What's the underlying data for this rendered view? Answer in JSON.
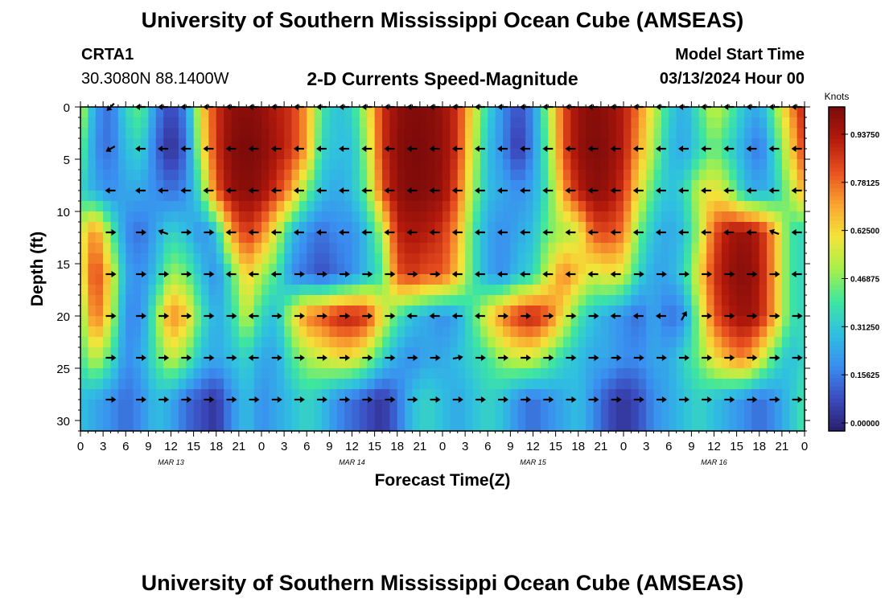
{
  "header": {
    "title": "University of Southern Mississippi Ocean Cube (AMSEAS)",
    "station_id": "CRTA1",
    "station_coords": "30.3080N  88.1400W",
    "subtitle": "2-D Currents Speed-Magnitude",
    "model_start_label": "Model Start Time",
    "model_start_value": "03/13/2024 Hour 00"
  },
  "footer": {
    "title": "University of Southern Mississippi Ocean Cube (AMSEAS)"
  },
  "chart_data": {
    "type": "heatmap",
    "title": "2-D Currents Speed-Magnitude",
    "xlabel": "Forecast Time(Z)",
    "ylabel": "Depth (ft)",
    "x_unit": "hours since 03/13/2024 00Z",
    "xlim": [
      0,
      96
    ],
    "ylim": [
      0,
      31
    ],
    "x_tick_hours": [
      0,
      3,
      6,
      9,
      12,
      15,
      18,
      21,
      24,
      27,
      30,
      33,
      36,
      39,
      42,
      45,
      48,
      51,
      54,
      57,
      60,
      63,
      66,
      69,
      72,
      75,
      78,
      81,
      84,
      87,
      90,
      93,
      96
    ],
    "x_tick_labels": [
      "0",
      "3",
      "6",
      "9",
      "12",
      "15",
      "18",
      "21",
      "0",
      "3",
      "6",
      "9",
      "12",
      "15",
      "18",
      "21",
      "0",
      "3",
      "6",
      "9",
      "12",
      "15",
      "18",
      "21",
      "0",
      "3",
      "6",
      "9",
      "12",
      "15",
      "18",
      "21",
      "0"
    ],
    "date_labels": [
      {
        "hour": 12,
        "text": "MAR 13"
      },
      {
        "hour": 36,
        "text": "MAR 14"
      },
      {
        "hour": 60,
        "text": "MAR 15"
      },
      {
        "hour": 84,
        "text": "MAR 16"
      }
    ],
    "y_ticks": [
      0,
      5,
      10,
      15,
      20,
      25,
      30
    ],
    "y_tick_labels": [
      "0",
      "5",
      "10",
      "15",
      "20",
      "25",
      "30"
    ],
    "colorbar": {
      "unit": "Knots",
      "range": [
        0,
        1.0
      ],
      "tick_values": [
        0.0,
        0.15625,
        0.3125,
        0.46875,
        0.625,
        0.78125,
        0.9375
      ],
      "tick_labels": [
        "0.00000",
        "0.15625",
        "0.31250",
        "0.46875",
        "0.62500",
        "0.78125",
        "0.93750"
      ],
      "colors": [
        "#2b1d6b",
        "#3b4cc0",
        "#3a8ef0",
        "#2fc0e0",
        "#3ee6a0",
        "#a8f04a",
        "#f4e33a",
        "#f9a330",
        "#e8501f",
        "#b41a0c",
        "#7a0a0a"
      ]
    },
    "depth_levels_ft": [
      0,
      4,
      8,
      12,
      16,
      20,
      24,
      28
    ],
    "speed_grid_hours": [
      0,
      2,
      4,
      6,
      8,
      10,
      12,
      14,
      16,
      18,
      20,
      22,
      24,
      26,
      28,
      30,
      32,
      34,
      36,
      38,
      40,
      42,
      44,
      46,
      48,
      50,
      52,
      54,
      56,
      58,
      60,
      62,
      64,
      66,
      68,
      70,
      72,
      74,
      76,
      78,
      80,
      82,
      84,
      86,
      88,
      90,
      92,
      94,
      96
    ],
    "speed": [
      [
        0.55,
        0.22,
        0.15,
        0.35,
        0.45,
        0.2,
        0.08,
        0.2,
        0.6,
        0.85,
        0.96,
        0.98,
        0.96,
        0.9,
        0.85,
        0.7,
        0.4,
        0.3,
        0.35,
        0.55,
        0.85,
        0.96,
        0.99,
        0.98,
        0.95,
        0.85,
        0.6,
        0.35,
        0.2,
        0.1,
        0.2,
        0.5,
        0.8,
        0.95,
        0.98,
        0.96,
        0.9,
        0.75,
        0.55,
        0.35,
        0.25,
        0.4,
        0.55,
        0.45,
        0.3,
        0.25,
        0.45,
        0.7,
        0.9
      ],
      [
        0.45,
        0.2,
        0.15,
        0.3,
        0.35,
        0.15,
        0.03,
        0.15,
        0.55,
        0.85,
        0.98,
        1.0,
        0.98,
        0.92,
        0.85,
        0.7,
        0.35,
        0.3,
        0.3,
        0.5,
        0.85,
        0.97,
        1.0,
        0.99,
        0.96,
        0.85,
        0.55,
        0.3,
        0.2,
        0.05,
        0.2,
        0.45,
        0.8,
        0.95,
        0.99,
        0.97,
        0.9,
        0.7,
        0.5,
        0.3,
        0.25,
        0.35,
        0.45,
        0.35,
        0.25,
        0.15,
        0.35,
        0.6,
        0.85
      ],
      [
        0.35,
        0.25,
        0.2,
        0.25,
        0.25,
        0.2,
        0.15,
        0.2,
        0.4,
        0.8,
        0.95,
        0.98,
        0.95,
        0.85,
        0.7,
        0.45,
        0.3,
        0.25,
        0.3,
        0.45,
        0.8,
        0.96,
        0.99,
        0.98,
        0.95,
        0.8,
        0.5,
        0.3,
        0.25,
        0.2,
        0.25,
        0.4,
        0.7,
        0.9,
        0.97,
        0.95,
        0.85,
        0.6,
        0.4,
        0.3,
        0.35,
        0.55,
        0.6,
        0.5,
        0.3,
        0.25,
        0.3,
        0.5,
        0.7
      ],
      [
        0.55,
        0.75,
        0.45,
        0.2,
        0.15,
        0.25,
        0.35,
        0.3,
        0.2,
        0.3,
        0.7,
        0.85,
        0.75,
        0.55,
        0.3,
        0.2,
        0.15,
        0.2,
        0.2,
        0.3,
        0.5,
        0.88,
        0.92,
        0.9,
        0.85,
        0.7,
        0.4,
        0.25,
        0.2,
        0.25,
        0.3,
        0.45,
        0.5,
        0.55,
        0.8,
        0.82,
        0.75,
        0.45,
        0.3,
        0.25,
        0.3,
        0.5,
        0.8,
        0.92,
        0.95,
        0.9,
        0.7,
        0.4,
        0.35
      ],
      [
        0.55,
        0.85,
        0.6,
        0.25,
        0.2,
        0.3,
        0.5,
        0.45,
        0.3,
        0.2,
        0.4,
        0.65,
        0.5,
        0.4,
        0.2,
        0.15,
        0.1,
        0.15,
        0.2,
        0.3,
        0.4,
        0.8,
        0.85,
        0.8,
        0.8,
        0.65,
        0.4,
        0.25,
        0.2,
        0.3,
        0.35,
        0.55,
        0.75,
        0.65,
        0.55,
        0.6,
        0.55,
        0.35,
        0.25,
        0.25,
        0.35,
        0.6,
        0.85,
        0.95,
        0.98,
        0.92,
        0.7,
        0.4,
        0.35
      ],
      [
        0.45,
        0.8,
        0.55,
        0.2,
        0.2,
        0.45,
        0.75,
        0.65,
        0.4,
        0.25,
        0.35,
        0.55,
        0.35,
        0.3,
        0.55,
        0.75,
        0.8,
        0.88,
        0.9,
        0.85,
        0.6,
        0.4,
        0.3,
        0.25,
        0.2,
        0.25,
        0.4,
        0.6,
        0.75,
        0.85,
        0.9,
        0.8,
        0.6,
        0.4,
        0.3,
        0.25,
        0.2,
        0.15,
        0.25,
        0.15,
        0.2,
        0.5,
        0.8,
        0.9,
        0.95,
        0.9,
        0.7,
        0.4,
        0.35
      ],
      [
        0.4,
        0.55,
        0.4,
        0.2,
        0.25,
        0.4,
        0.55,
        0.45,
        0.3,
        0.25,
        0.3,
        0.35,
        0.25,
        0.25,
        0.4,
        0.5,
        0.55,
        0.6,
        0.6,
        0.5,
        0.35,
        0.25,
        0.2,
        0.25,
        0.25,
        0.3,
        0.35,
        0.4,
        0.5,
        0.55,
        0.55,
        0.45,
        0.35,
        0.3,
        0.25,
        0.25,
        0.2,
        0.2,
        0.25,
        0.25,
        0.35,
        0.45,
        0.6,
        0.7,
        0.75,
        0.6,
        0.4,
        0.3,
        0.35
      ],
      [
        0.3,
        0.25,
        0.2,
        0.15,
        0.2,
        0.3,
        0.25,
        0.15,
        0.1,
        0.05,
        0.2,
        0.3,
        0.2,
        0.25,
        0.3,
        0.35,
        0.3,
        0.2,
        0.15,
        0.1,
        0.05,
        0.15,
        0.3,
        0.35,
        0.3,
        0.25,
        0.3,
        0.35,
        0.3,
        0.2,
        0.15,
        0.2,
        0.25,
        0.3,
        0.2,
        0.1,
        0.05,
        0.1,
        0.2,
        0.25,
        0.3,
        0.35,
        0.3,
        0.25,
        0.2,
        0.15,
        0.2,
        0.3,
        0.4
      ]
    ],
    "current_vectors_hours": [
      4,
      8,
      11,
      14,
      17,
      20,
      23,
      26,
      29,
      32,
      35,
      38,
      41,
      44,
      47,
      50,
      53,
      56,
      59,
      62,
      65,
      68,
      71,
      74,
      77,
      80,
      83,
      86,
      89,
      92,
      95
    ],
    "current_vectors_dir_deg": [
      [
        135,
        180,
        180,
        180,
        180,
        180,
        180,
        180,
        180,
        180,
        180,
        180,
        180,
        180,
        180,
        180,
        180,
        180,
        180,
        180,
        180,
        180,
        180,
        180,
        180,
        180,
        180,
        180,
        180,
        180,
        180
      ],
      [
        150,
        180,
        180,
        180,
        180,
        180,
        180,
        180,
        180,
        180,
        180,
        180,
        180,
        180,
        180,
        180,
        180,
        180,
        180,
        180,
        180,
        180,
        180,
        180,
        180,
        180,
        180,
        180,
        180,
        180,
        180
      ],
      [
        180,
        180,
        180,
        180,
        180,
        180,
        180,
        180,
        180,
        180,
        180,
        180,
        180,
        180,
        180,
        180,
        180,
        180,
        180,
        180,
        180,
        180,
        180,
        180,
        180,
        180,
        180,
        180,
        180,
        180,
        180
      ],
      [
        0,
        0,
        200,
        0,
        0,
        180,
        180,
        180,
        180,
        180,
        180,
        180,
        180,
        180,
        180,
        180,
        180,
        180,
        180,
        180,
        180,
        180,
        180,
        180,
        180,
        180,
        180,
        180,
        180,
        200,
        180
      ],
      [
        0,
        0,
        0,
        0,
        0,
        180,
        180,
        180,
        0,
        0,
        0,
        0,
        0,
        0,
        0,
        180,
        180,
        180,
        180,
        180,
        180,
        180,
        180,
        0,
        0,
        0,
        0,
        0,
        0,
        0,
        180
      ],
      [
        0,
        0,
        0,
        0,
        0,
        0,
        180,
        0,
        0,
        0,
        0,
        0,
        0,
        180,
        180,
        180,
        180,
        0,
        0,
        0,
        0,
        0,
        180,
        180,
        180,
        300,
        0,
        0,
        0,
        0,
        0
      ],
      [
        0,
        0,
        0,
        0,
        0,
        0,
        180,
        0,
        0,
        0,
        0,
        0,
        0,
        0,
        0,
        350,
        0,
        0,
        0,
        0,
        0,
        0,
        0,
        0,
        0,
        0,
        0,
        0,
        0,
        0,
        0
      ],
      [
        0,
        0,
        0,
        0,
        0,
        0,
        0,
        0,
        0,
        0,
        0,
        0,
        0,
        0,
        0,
        0,
        0,
        0,
        0,
        0,
        0,
        0,
        0,
        0,
        0,
        0,
        0,
        0,
        0,
        0,
        0
      ]
    ]
  }
}
